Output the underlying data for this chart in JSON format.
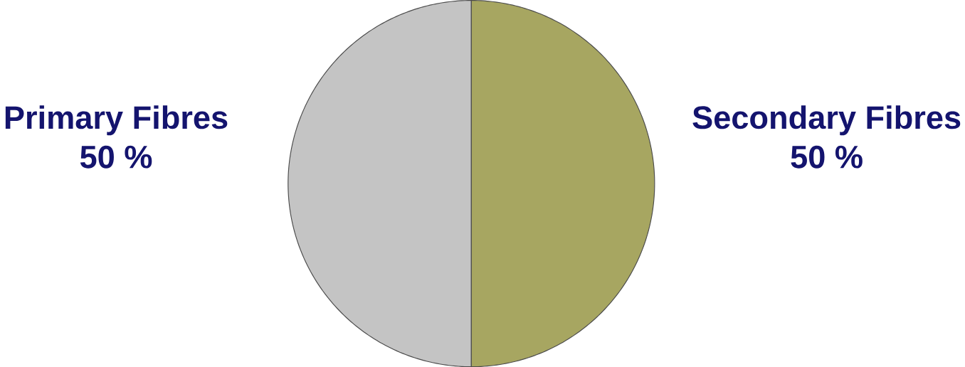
{
  "chart_data": {
    "type": "pie",
    "categories": [
      "Primary Fibres",
      "Secondary Fibres"
    ],
    "values": [
      50,
      50
    ],
    "colors": [
      "#c4c4c4",
      "#a7a661"
    ],
    "value_labels": [
      "50 %",
      "50 %"
    ]
  }
}
